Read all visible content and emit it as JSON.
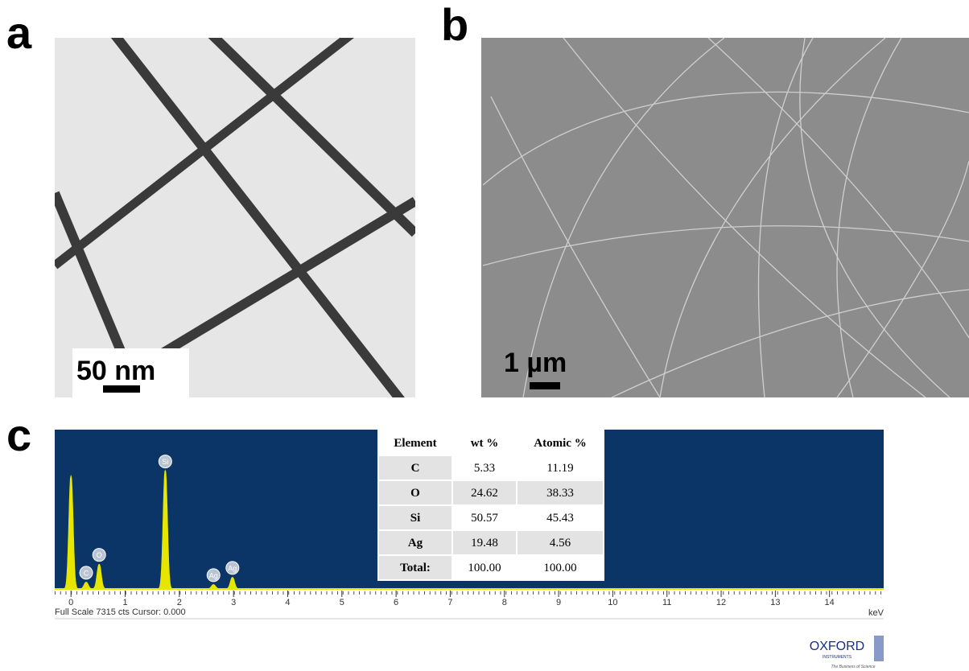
{
  "panels": {
    "a": {
      "label": "a",
      "scale_bar": "50 nm"
    },
    "b": {
      "label": "b",
      "scale_bar": "1 µm"
    },
    "c": {
      "label": "c"
    }
  },
  "chart_data": {
    "type": "spectrum",
    "xlim": [
      -0.3,
      15
    ],
    "ylim": [
      0,
      7315
    ],
    "xticks": [
      0,
      1,
      2,
      3,
      4,
      5,
      6,
      7,
      8,
      9,
      10,
      11,
      12,
      13,
      14
    ],
    "x_unit": "keV",
    "footer": "Full Scale 7315 cts Cursor: 0.000",
    "color": "#e6e600",
    "background": "#0b3566",
    "peaks": [
      {
        "label": null,
        "energy": 0,
        "counts": 5150
      },
      {
        "label": "C",
        "energy": 0.28,
        "counts": 300
      },
      {
        "label": "O",
        "energy": 0.52,
        "counts": 1120
      },
      {
        "label": "Si",
        "energy": 1.74,
        "counts": 5410
      },
      {
        "label": "Ag",
        "energy": 2.63,
        "counts": 190
      },
      {
        "label": "Ag",
        "energy": 2.98,
        "counts": 520
      }
    ]
  },
  "table": {
    "header": [
      "Element",
      "wt %",
      "Atomic %"
    ],
    "rows": [
      [
        "C",
        "5.33",
        "11.19"
      ],
      [
        "O",
        "24.62",
        "38.33"
      ],
      [
        "Si",
        "50.57",
        "45.43"
      ],
      [
        "Ag",
        "19.48",
        "4.56"
      ],
      [
        "Total:",
        "100.00",
        "100.00"
      ]
    ]
  },
  "logo": {
    "name": "OXFORD",
    "sub": "INSTRUMENTS",
    "tagline": "The Business of Science"
  }
}
